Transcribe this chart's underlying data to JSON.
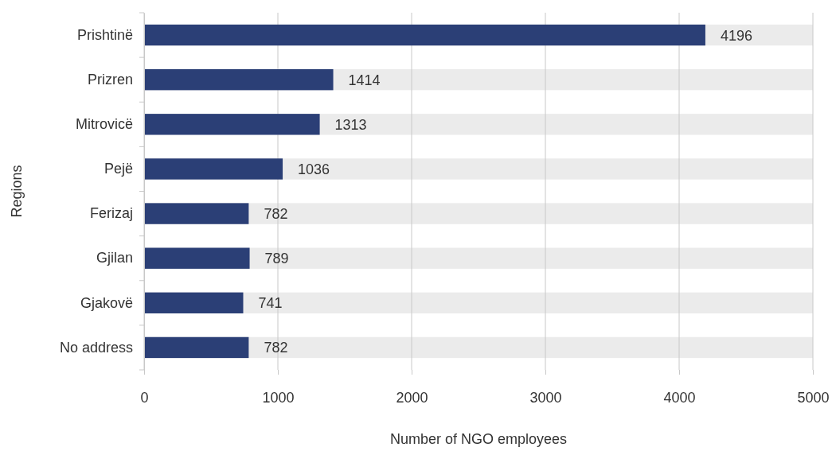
{
  "chart_data": {
    "type": "bar",
    "orientation": "horizontal",
    "xlabel": "Number of NGO employees",
    "ylabel": "Regions",
    "categories": [
      "Prishtinë",
      "Prizren",
      "Mitrovicë",
      "Pejë",
      "Ferizaj",
      "Gjilan",
      "Gjakovë",
      "No address"
    ],
    "values": [
      4196,
      1414,
      1313,
      1036,
      782,
      789,
      741,
      782
    ],
    "color": "#2b3f76",
    "xlim": [
      0,
      5000
    ],
    "xticks": [
      0,
      1000,
      2000,
      3000,
      4000,
      5000
    ],
    "grid": "x",
    "data_labels": true
  }
}
